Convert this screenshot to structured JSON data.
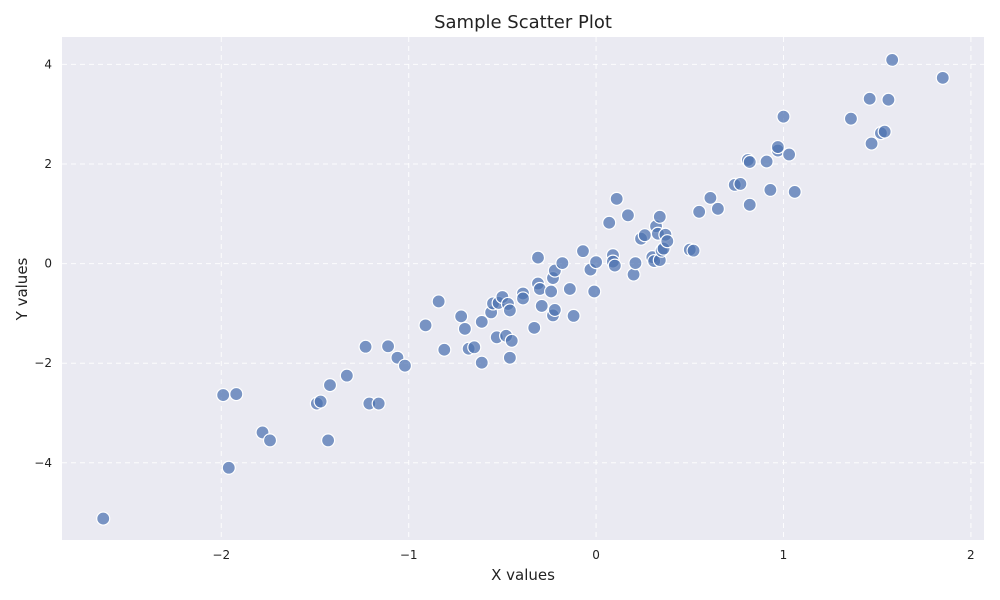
{
  "chart_data": {
    "type": "scatter",
    "title": "Sample Scatter Plot",
    "xlabel": "X values",
    "ylabel": "Y values",
    "xlim": [
      -2.85,
      2.07
    ],
    "ylim": [
      -5.55,
      4.55
    ],
    "xticks": [
      -2,
      -1,
      0,
      1,
      2
    ],
    "yticks": [
      -4,
      -2,
      0,
      2,
      4
    ],
    "xtick_labels": [
      "−2",
      "−1",
      "0",
      "1",
      "2"
    ],
    "ytick_labels": [
      "−4",
      "−2",
      "0",
      "2",
      "4"
    ],
    "grid": true,
    "style": {
      "background": "#eaeaf2",
      "point_color": "#4c72b0",
      "grid_color": "#ffffff"
    },
    "series": [
      {
        "points": [
          {
            "x": -2.63,
            "y": -5.12
          },
          {
            "x": -1.99,
            "y": -2.64
          },
          {
            "x": -1.96,
            "y": -4.1
          },
          {
            "x": -1.92,
            "y": -2.62
          },
          {
            "x": -1.78,
            "y": -3.39
          },
          {
            "x": -1.74,
            "y": -3.55
          },
          {
            "x": -1.49,
            "y": -2.81
          },
          {
            "x": -1.47,
            "y": -2.77
          },
          {
            "x": -1.43,
            "y": -3.55
          },
          {
            "x": -1.42,
            "y": -2.44
          },
          {
            "x": -1.33,
            "y": -2.25
          },
          {
            "x": -1.23,
            "y": -1.67
          },
          {
            "x": -1.21,
            "y": -2.81
          },
          {
            "x": -1.16,
            "y": -2.81
          },
          {
            "x": -1.11,
            "y": -1.66
          },
          {
            "x": -1.06,
            "y": -1.89
          },
          {
            "x": -1.02,
            "y": -2.05
          },
          {
            "x": -0.91,
            "y": -1.24
          },
          {
            "x": -0.84,
            "y": -0.76
          },
          {
            "x": -0.81,
            "y": -1.73
          },
          {
            "x": -0.72,
            "y": -1.06
          },
          {
            "x": -0.7,
            "y": -1.31
          },
          {
            "x": -0.68,
            "y": -1.71
          },
          {
            "x": -0.65,
            "y": -1.68
          },
          {
            "x": -0.61,
            "y": -1.17
          },
          {
            "x": -0.61,
            "y": -1.99
          },
          {
            "x": -0.56,
            "y": -0.98
          },
          {
            "x": -0.55,
            "y": -0.8
          },
          {
            "x": -0.53,
            "y": -1.48
          },
          {
            "x": -0.52,
            "y": -0.79
          },
          {
            "x": -0.5,
            "y": -0.67
          },
          {
            "x": -0.48,
            "y": -1.45
          },
          {
            "x": -0.47,
            "y": -0.81
          },
          {
            "x": -0.46,
            "y": -0.94
          },
          {
            "x": -0.46,
            "y": -1.89
          },
          {
            "x": -0.45,
            "y": -1.55
          },
          {
            "x": -0.39,
            "y": -0.6
          },
          {
            "x": -0.39,
            "y": -0.7
          },
          {
            "x": -0.33,
            "y": -1.29
          },
          {
            "x": -0.31,
            "y": 0.12
          },
          {
            "x": -0.31,
            "y": -0.4
          },
          {
            "x": -0.3,
            "y": -0.51
          },
          {
            "x": -0.29,
            "y": -0.85
          },
          {
            "x": -0.24,
            "y": -0.56
          },
          {
            "x": -0.23,
            "y": -1.04
          },
          {
            "x": -0.23,
            "y": -0.29
          },
          {
            "x": -0.22,
            "y": -0.93
          },
          {
            "x": -0.22,
            "y": -0.14
          },
          {
            "x": -0.18,
            "y": 0.01
          },
          {
            "x": -0.14,
            "y": -0.51
          },
          {
            "x": -0.12,
            "y": -1.05
          },
          {
            "x": -0.07,
            "y": 0.25
          },
          {
            "x": -0.03,
            "y": -0.12
          },
          {
            "x": -0.01,
            "y": -0.56
          },
          {
            "x": 0.0,
            "y": 0.03
          },
          {
            "x": 0.07,
            "y": 0.82
          },
          {
            "x": 0.09,
            "y": 0.17
          },
          {
            "x": 0.09,
            "y": 0.04
          },
          {
            "x": 0.1,
            "y": -0.04
          },
          {
            "x": 0.11,
            "y": 1.3
          },
          {
            "x": 0.17,
            "y": 0.97
          },
          {
            "x": 0.2,
            "y": -0.22
          },
          {
            "x": 0.21,
            "y": 0.01
          },
          {
            "x": 0.24,
            "y": 0.5
          },
          {
            "x": 0.26,
            "y": 0.57
          },
          {
            "x": 0.3,
            "y": 0.13
          },
          {
            "x": 0.31,
            "y": 0.05
          },
          {
            "x": 0.32,
            "y": 0.75
          },
          {
            "x": 0.33,
            "y": 0.6
          },
          {
            "x": 0.34,
            "y": 0.07
          },
          {
            "x": 0.34,
            "y": 0.94
          },
          {
            "x": 0.35,
            "y": 0.26
          },
          {
            "x": 0.36,
            "y": 0.3
          },
          {
            "x": 0.37,
            "y": 0.58
          },
          {
            "x": 0.38,
            "y": 0.45
          },
          {
            "x": 0.5,
            "y": 0.28
          },
          {
            "x": 0.52,
            "y": 0.26
          },
          {
            "x": 0.55,
            "y": 1.04
          },
          {
            "x": 0.61,
            "y": 1.32
          },
          {
            "x": 0.65,
            "y": 1.1
          },
          {
            "x": 0.74,
            "y": 1.58
          },
          {
            "x": 0.77,
            "y": 1.6
          },
          {
            "x": 0.81,
            "y": 2.08
          },
          {
            "x": 0.82,
            "y": 2.04
          },
          {
            "x": 0.82,
            "y": 1.18
          },
          {
            "x": 0.91,
            "y": 2.05
          },
          {
            "x": 0.93,
            "y": 1.48
          },
          {
            "x": 0.97,
            "y": 2.27
          },
          {
            "x": 0.97,
            "y": 2.34
          },
          {
            "x": 1.0,
            "y": 2.95
          },
          {
            "x": 1.03,
            "y": 2.19
          },
          {
            "x": 1.06,
            "y": 1.44
          },
          {
            "x": 1.36,
            "y": 2.91
          },
          {
            "x": 1.46,
            "y": 3.31
          },
          {
            "x": 1.47,
            "y": 2.41
          },
          {
            "x": 1.52,
            "y": 2.62
          },
          {
            "x": 1.54,
            "y": 2.65
          },
          {
            "x": 1.56,
            "y": 3.29
          },
          {
            "x": 1.58,
            "y": 4.09
          },
          {
            "x": 1.85,
            "y": 3.73
          }
        ]
      }
    ]
  }
}
